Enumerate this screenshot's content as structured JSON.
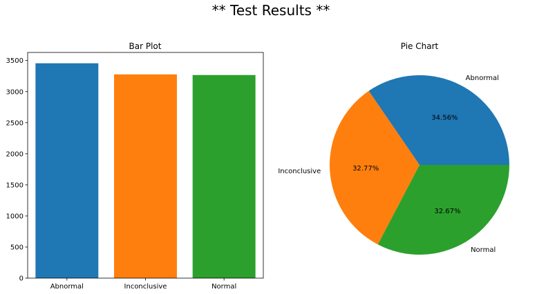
{
  "figure": {
    "title": "** Test Results **"
  },
  "chart_data": [
    {
      "type": "bar",
      "title": "Bar Plot",
      "categories": [
        "Abnormal",
        "Inconclusive",
        "Normal"
      ],
      "values": [
        3456,
        3277,
        3267
      ],
      "colors": [
        "#1f77b4",
        "#ff7f0e",
        "#2ca02c"
      ],
      "xlabel": "",
      "ylabel": "",
      "ylim": [
        0,
        3630
      ],
      "yticks": [
        0,
        500,
        1000,
        1500,
        2000,
        2500,
        3000,
        3500
      ],
      "grid": false
    },
    {
      "type": "pie",
      "title": "Pie Chart",
      "labels": [
        "Abnormal",
        "Inconclusive",
        "Normal"
      ],
      "values": [
        34.56,
        32.77,
        32.67
      ],
      "pct_labels": [
        "34.56%",
        "32.77%",
        "32.67%"
      ],
      "colors": [
        "#1f77b4",
        "#ff7f0e",
        "#2ca02c"
      ],
      "start_angle_deg": 0,
      "direction": "counterclockwise"
    }
  ]
}
